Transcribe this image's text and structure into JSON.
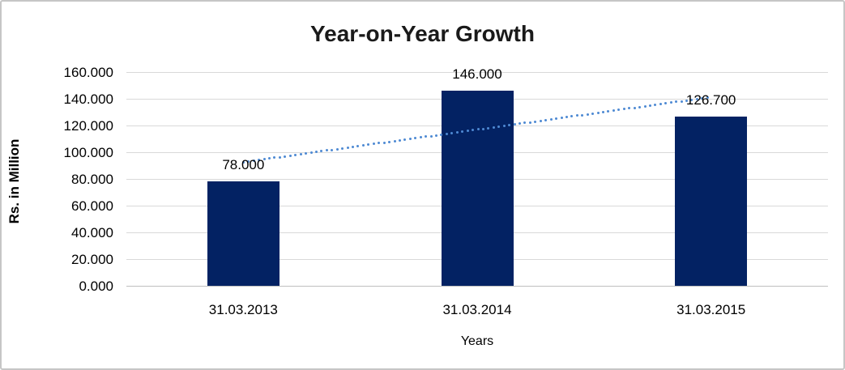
{
  "chart_data": {
    "type": "bar",
    "title": "Year-on-Year Growth",
    "xlabel": "Years",
    "ylabel": "Rs. in Million",
    "categories": [
      "31.03.2013",
      "31.03.2014",
      "31.03.2015"
    ],
    "values": [
      78.0,
      146.0,
      126.7
    ],
    "value_labels": [
      "78.000",
      "146.000",
      "126.700"
    ],
    "ylim": [
      0,
      160
    ],
    "ytick_step": 20,
    "ytick_labels": [
      "0.000",
      "20.000",
      "40.000",
      "60.000",
      "80.000",
      "100.000",
      "120.000",
      "140.000",
      "160.000"
    ],
    "grid": true,
    "legend": "none",
    "trendline": {
      "type": "linear",
      "style": "dotted"
    },
    "colors": {
      "bar": "#032263",
      "trendline": "#4e8ad3",
      "gridline": "#d9d9d9",
      "axis_line": "#c0c0c0",
      "title_text": "#1a1a1a",
      "label_text": "#000000",
      "chart_border": "#c6c6c6",
      "background": "#ffffff"
    }
  }
}
